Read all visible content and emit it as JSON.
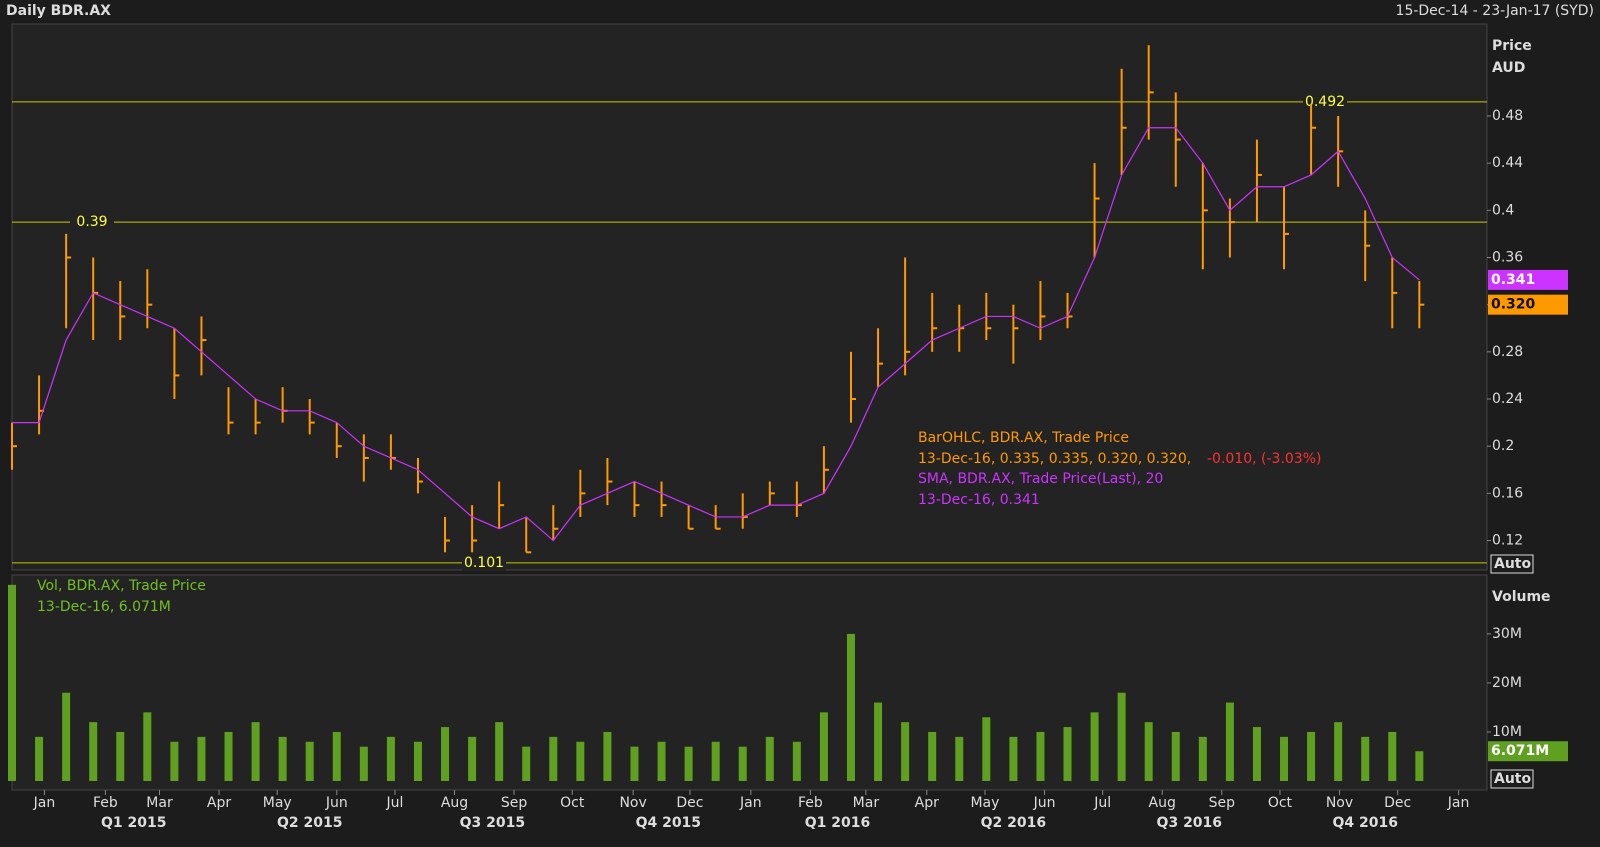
{
  "chart_data": {
    "type": "ohlc",
    "title": "Daily BDR.AX",
    "date_range": "15-Dec-14 - 23-Jan-17 (SYD)",
    "y_label": [
      "Price",
      "AUD"
    ],
    "y2_label": "Volume",
    "auto_labels": [
      "Auto",
      "Auto"
    ],
    "x": [
      0,
      2,
      4,
      6,
      8,
      10,
      12,
      14,
      16,
      18,
      20,
      22,
      24,
      26,
      28,
      30,
      32,
      34,
      36,
      38,
      40,
      42,
      44,
      46,
      48,
      50,
      52,
      54,
      56,
      58,
      60,
      62,
      64,
      66,
      68,
      70,
      72,
      74,
      76,
      78,
      80,
      82,
      84,
      86,
      88,
      90,
      92,
      94,
      96,
      98,
      100,
      102,
      104
    ],
    "xlim": [
      0,
      109
    ],
    "xticks": [
      {
        "value": 2.4,
        "label": "Jan"
      },
      {
        "value": 6.9,
        "label": "Feb"
      },
      {
        "value": 10.9,
        "label": "Mar"
      },
      {
        "value": 15.3,
        "label": "Apr"
      },
      {
        "value": 19.6,
        "label": "May"
      },
      {
        "value": 24,
        "label": "Jun"
      },
      {
        "value": 28.3,
        "label": "Jul"
      },
      {
        "value": 32.7,
        "label": "Aug"
      },
      {
        "value": 37.1,
        "label": "Sep"
      },
      {
        "value": 41.4,
        "label": "Oct"
      },
      {
        "value": 45.9,
        "label": "Nov"
      },
      {
        "value": 50.1,
        "label": "Dec"
      },
      {
        "value": 54.6,
        "label": "Jan"
      },
      {
        "value": 59,
        "label": "Feb"
      },
      {
        "value": 63.1,
        "label": "Mar"
      },
      {
        "value": 67.6,
        "label": "Apr"
      },
      {
        "value": 71.9,
        "label": "May"
      },
      {
        "value": 76.3,
        "label": "Jun"
      },
      {
        "value": 80.6,
        "label": "Jul"
      },
      {
        "value": 85,
        "label": "Aug"
      },
      {
        "value": 89.4,
        "label": "Sep"
      },
      {
        "value": 93.7,
        "label": "Oct"
      },
      {
        "value": 98.1,
        "label": "Nov"
      },
      {
        "value": 102.4,
        "label": "Dec"
      },
      {
        "value": 106.9,
        "label": "Jan"
      }
    ],
    "quarters": [
      {
        "value": 9,
        "label": "Q1 2015"
      },
      {
        "value": 22,
        "label": "Q2 2015"
      },
      {
        "value": 35.5,
        "label": "Q3 2015"
      },
      {
        "value": 48.5,
        "label": "Q4 2015"
      },
      {
        "value": 61,
        "label": "Q1 2016"
      },
      {
        "value": 74,
        "label": "Q2 2016"
      },
      {
        "value": 87,
        "label": "Q3 2016"
      },
      {
        "value": 100,
        "label": "Q4 2016"
      }
    ],
    "ylim": [
      0.095,
      0.558
    ],
    "yticks": [
      0.12,
      0.16,
      0.2,
      0.24,
      0.28,
      0.32,
      0.36,
      0.4,
      0.44,
      0.48
    ],
    "y2lim": [
      0,
      41.6
    ],
    "y2ticks": [
      {
        "value": 10,
        "label": "10M"
      },
      {
        "value": 20,
        "label": "20M"
      },
      {
        "value": 30,
        "label": "30M"
      }
    ],
    "levels": [
      0.492,
      0.39,
      0.101
    ],
    "level_color": "#c8c800",
    "series": [
      {
        "name": "BarOHLC, BDR.AX, Trade Price",
        "color": "#ff9900",
        "high": [
          0.22,
          0.26,
          0.38,
          0.36,
          0.34,
          0.35,
          0.3,
          0.31,
          0.25,
          0.24,
          0.25,
          0.24,
          0.22,
          0.21,
          0.21,
          0.19,
          0.14,
          0.15,
          0.17,
          0.14,
          0.15,
          0.18,
          0.19,
          0.17,
          0.17,
          0.15,
          0.15,
          0.16,
          0.17,
          0.17,
          0.2,
          0.28,
          0.3,
          0.36,
          0.33,
          0.32,
          0.33,
          0.32,
          0.34,
          0.33,
          0.44,
          0.52,
          0.54,
          0.5,
          0.44,
          0.41,
          0.46,
          0.42,
          0.49,
          0.48,
          0.4,
          0.36,
          0.34
        ],
        "low": [
          0.18,
          0.21,
          0.3,
          0.29,
          0.29,
          0.3,
          0.24,
          0.26,
          0.21,
          0.21,
          0.22,
          0.21,
          0.19,
          0.17,
          0.18,
          0.16,
          0.11,
          0.11,
          0.13,
          0.11,
          0.12,
          0.14,
          0.15,
          0.14,
          0.14,
          0.13,
          0.13,
          0.13,
          0.15,
          0.14,
          0.16,
          0.22,
          0.25,
          0.26,
          0.28,
          0.28,
          0.29,
          0.27,
          0.29,
          0.3,
          0.36,
          0.43,
          0.46,
          0.42,
          0.35,
          0.36,
          0.39,
          0.35,
          0.43,
          0.42,
          0.34,
          0.3,
          0.3
        ],
        "values": [
          0.2,
          0.23,
          0.36,
          0.33,
          0.31,
          0.32,
          0.26,
          0.29,
          0.22,
          0.22,
          0.23,
          0.22,
          0.2,
          0.19,
          0.19,
          0.17,
          0.12,
          0.12,
          0.15,
          0.11,
          0.13,
          0.16,
          0.17,
          0.15,
          0.15,
          0.13,
          0.13,
          0.14,
          0.16,
          0.15,
          0.18,
          0.24,
          0.27,
          0.28,
          0.3,
          0.3,
          0.3,
          0.3,
          0.31,
          0.31,
          0.41,
          0.47,
          0.5,
          0.46,
          0.4,
          0.39,
          0.43,
          0.38,
          0.47,
          0.45,
          0.37,
          0.33,
          0.32
        ],
        "legend": [
          "13-Dec-16, 0.335, 0.335, 0.320, 0.320,",
          "-0.010, (-3.03%)"
        ],
        "last_label": "0.320"
      },
      {
        "name": "SMA, BDR.AX, Trade Price(Last),  20",
        "color": "#cc33ff",
        "values": [
          0.22,
          0.22,
          0.29,
          0.33,
          0.32,
          0.31,
          0.3,
          0.28,
          0.26,
          0.24,
          0.23,
          0.23,
          0.22,
          0.2,
          0.19,
          0.18,
          0.16,
          0.14,
          0.13,
          0.14,
          0.12,
          0.15,
          0.16,
          0.17,
          0.16,
          0.15,
          0.14,
          0.14,
          0.15,
          0.15,
          0.16,
          0.2,
          0.25,
          0.27,
          0.29,
          0.3,
          0.31,
          0.31,
          0.3,
          0.31,
          0.36,
          0.43,
          0.47,
          0.47,
          0.44,
          0.4,
          0.42,
          0.42,
          0.43,
          0.45,
          0.41,
          0.36,
          0.341
        ],
        "legend": [
          "13-Dec-16, 0.341"
        ],
        "last_label": "0.341"
      },
      {
        "name": "Vol, BDR.AX, Trade Price",
        "color": "#5fa020",
        "axis": "y2",
        "values": [
          40,
          9,
          18,
          12,
          10,
          14,
          8,
          9,
          10,
          12,
          9,
          8,
          10,
          7,
          9,
          8,
          11,
          9,
          12,
          7,
          9,
          8,
          10,
          7,
          8,
          7,
          8,
          7,
          9,
          8,
          14,
          30,
          16,
          12,
          10,
          9,
          13,
          9,
          10,
          11,
          14,
          18,
          12,
          10,
          9,
          16,
          11,
          9,
          10,
          12,
          9,
          10,
          6.071
        ],
        "value_labels": [
          "13-Dec-16, 6.071M"
        ],
        "last_label": "6.071M"
      }
    ]
  }
}
